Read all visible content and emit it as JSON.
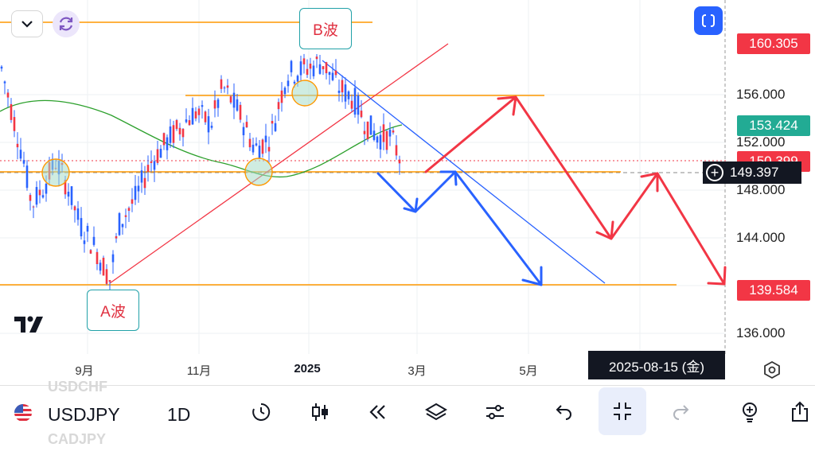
{
  "chart_data": {
    "type": "candlestick",
    "symbol": "USDJPY",
    "interval": "1D",
    "x_ticks": [
      "9月",
      "11月",
      "2025",
      "3月",
      "5月"
    ],
    "y_ticks": [
      "156.000",
      "152.000",
      "148.000",
      "144.000",
      "136.000"
    ],
    "price_tags": [
      {
        "value": "160.305",
        "color": "#f23645"
      },
      {
        "value": "153.424",
        "color": "#22ab94"
      },
      {
        "value": "150.399",
        "color": "#f23645"
      },
      {
        "value": "139.584",
        "color": "#f23645"
      }
    ],
    "last_price": "149.397",
    "crosshair_date": "2025-08-15 (金)",
    "annotations": [
      "A波",
      "B波"
    ],
    "ylim": [
      134.5,
      163
    ]
  },
  "header": {
    "dropdown_icon": "chevron-down-icon",
    "refresh_icon": "refresh-icon",
    "fullscreen_icon": "fullscreen-icon"
  },
  "toolbar": {
    "symbol": "USDJPY",
    "interval": "1D",
    "ghost_above": "USDCHF",
    "ghost_below": "CADJPY",
    "icons": [
      "replay-icon",
      "candlestick-icon",
      "rewind-icon",
      "layers-icon",
      "settings-sliders-icon",
      "undo-icon",
      "fit-screen-icon",
      "redo-icon",
      "idea-lightbulb-icon",
      "share-icon"
    ]
  },
  "colors": {
    "bull": "#22ab94",
    "bear": "#f23645",
    "candles": "#2962ff",
    "ma": "#2ca02c",
    "orange": "#ff9800",
    "blue_arrow": "#2962ff",
    "red_arrow": "#f23645"
  }
}
